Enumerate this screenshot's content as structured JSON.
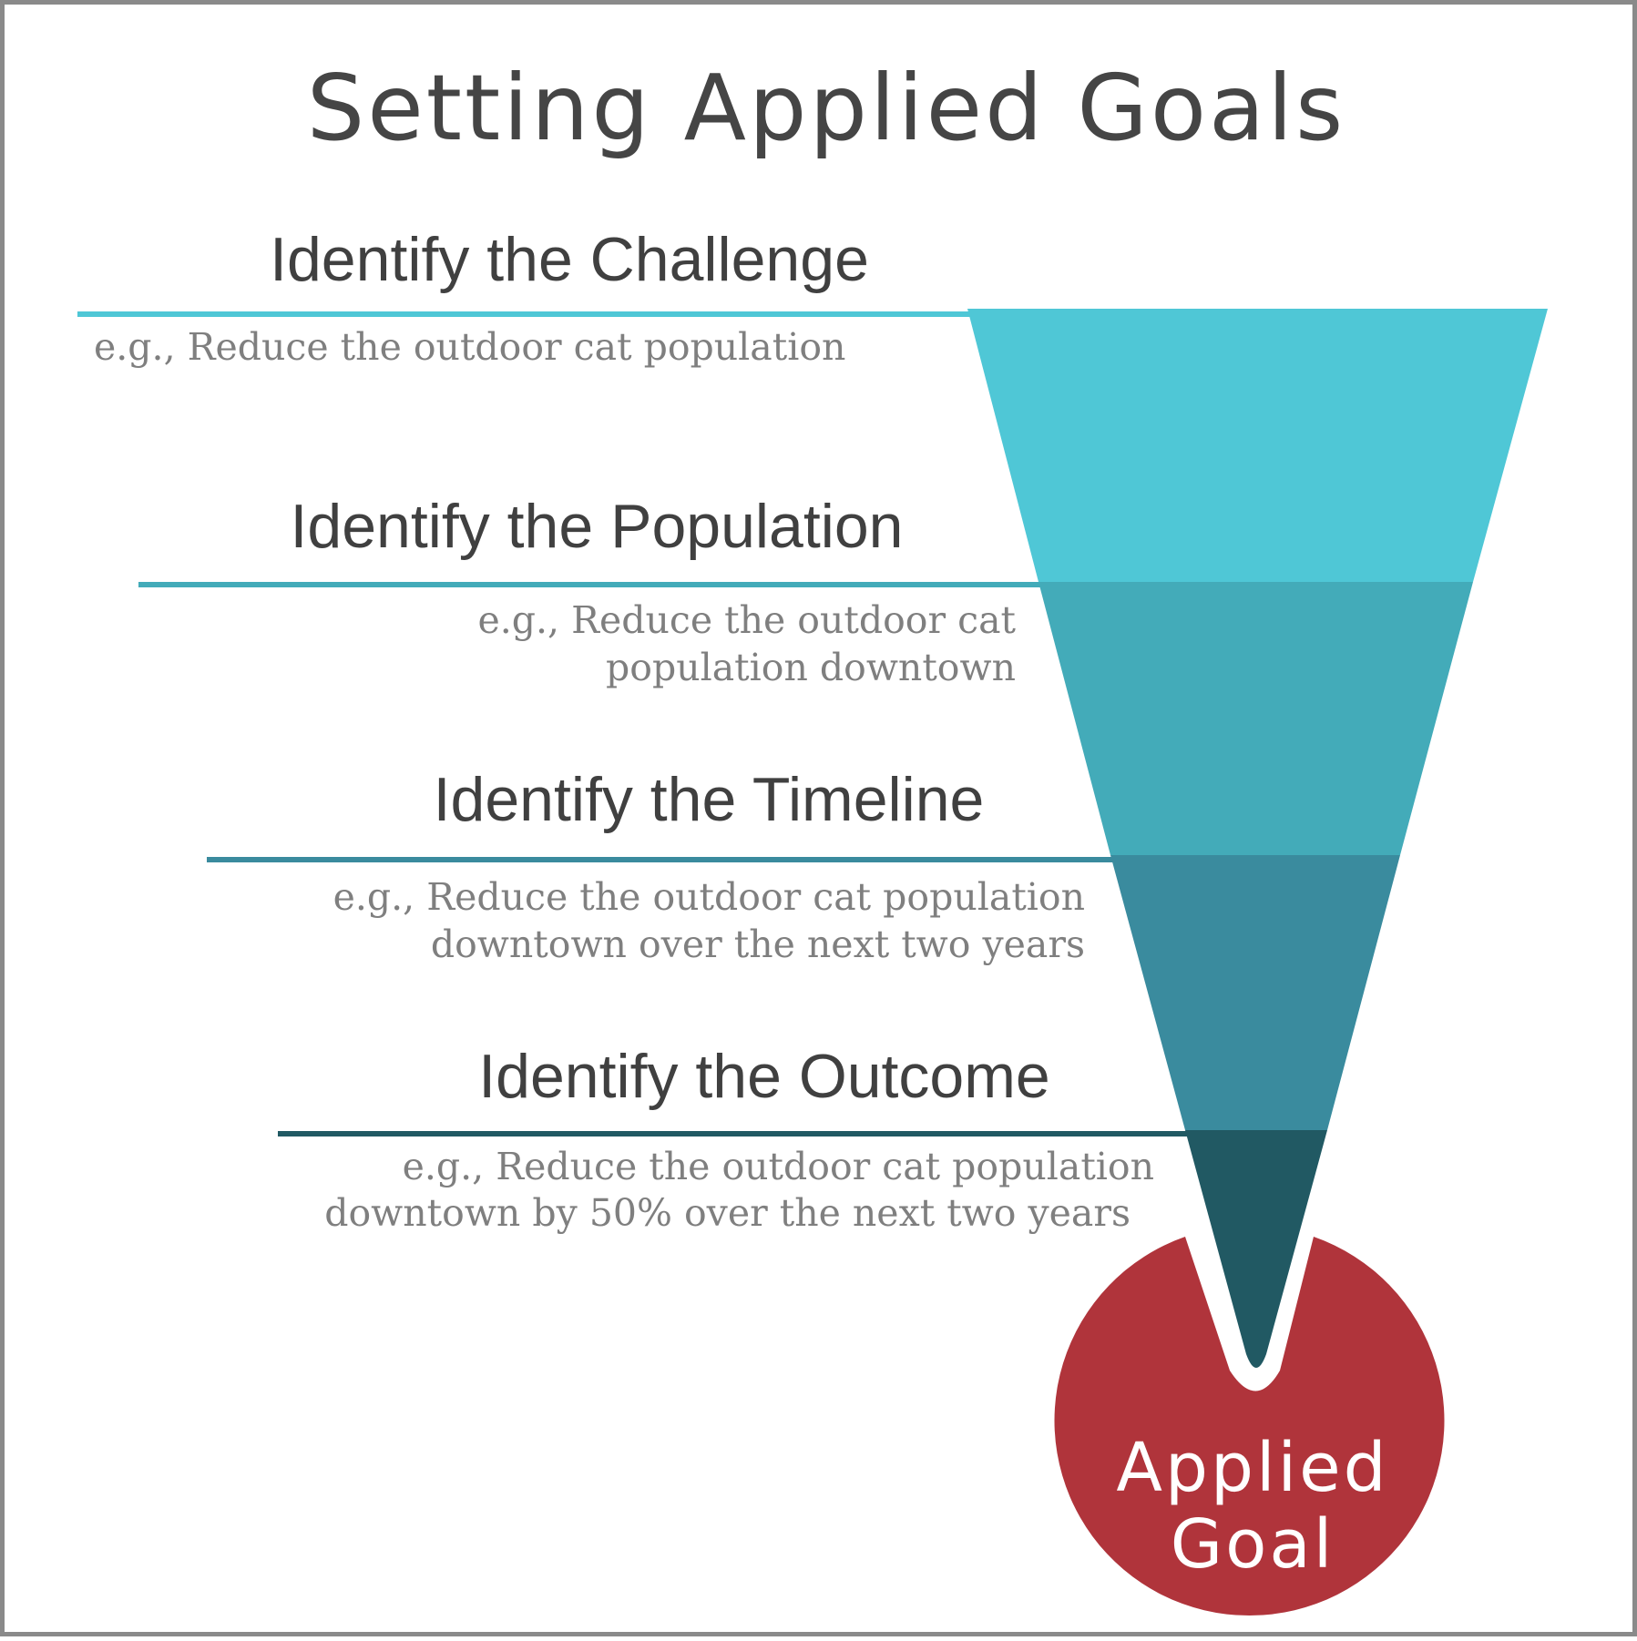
{
  "title": "Setting Applied Goals",
  "colors": {
    "title_text": "#454545",
    "heading_text": "#404040",
    "example_text": "#7f7f7f",
    "frame_border": "#8a8a8a",
    "goal_circle": "#b0343b",
    "goal_text": "#ffffff"
  },
  "steps": [
    {
      "heading": "Identify the Challenge",
      "example_lines": [
        "e.g., Reduce the outdoor cat population"
      ],
      "color": "#4fc7d6"
    },
    {
      "heading": "Identify the Population",
      "example_lines": [
        "e.g., Reduce the outdoor cat",
        "population downtown"
      ],
      "color": "#43abb9"
    },
    {
      "heading": "Identify the Timeline",
      "example_lines": [
        "e.g., Reduce the outdoor cat population",
        "downtown over the next two years"
      ],
      "color": "#3a8b9e"
    },
    {
      "heading": "Identify the Outcome",
      "example_lines": [
        "e.g., Reduce the outdoor cat population",
        "downtown by 50% over the next two years"
      ],
      "color": "#215963"
    }
  ],
  "goal": {
    "lines": [
      "Applied",
      "Goal"
    ]
  }
}
